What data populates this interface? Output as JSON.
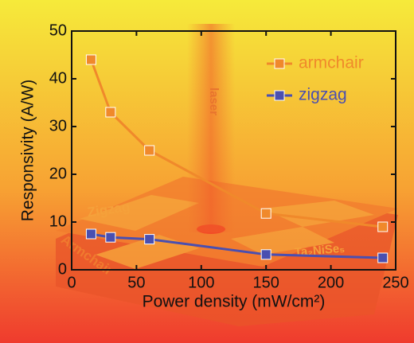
{
  "chart_data": {
    "type": "line",
    "xlabel": "Power density (mW/cm²)",
    "ylabel": "Responsivity (A/W)",
    "x": [
      15,
      30,
      60,
      150,
      240
    ],
    "series": [
      {
        "name": "armchair",
        "color": "#f0892b",
        "values": [
          44,
          33,
          25,
          11.8,
          9
        ]
      },
      {
        "name": "zigzag",
        "color": "#4a4fb0",
        "values": [
          7.5,
          6.8,
          6.4,
          3.2,
          2.5
        ]
      }
    ],
    "xlim": [
      0,
      250
    ],
    "xticks": [
      0,
      50,
      100,
      150,
      200,
      250
    ],
    "ylim": [
      0,
      50
    ],
    "yticks": [
      0,
      10,
      20,
      30,
      40,
      50
    ],
    "legend": "upper right",
    "annotations": [
      "laser",
      "Zigzag",
      "Armchair",
      "Ta₂NiSe₅"
    ]
  }
}
